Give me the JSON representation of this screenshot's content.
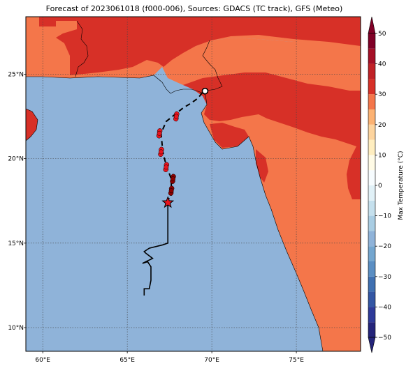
{
  "title": "Forecast of 2023061018 (f000-006), Sources: GDACS (TC track), GFS (Meteo)",
  "map": {
    "lon_range": [
      59,
      78.8
    ],
    "lat_range": [
      8.6,
      28.4
    ],
    "lon_ticks": [
      {
        "value": 60,
        "label": "60°E"
      },
      {
        "value": 65,
        "label": "65°E"
      },
      {
        "value": 70,
        "label": "70°E"
      },
      {
        "value": 75,
        "label": "75°E"
      }
    ],
    "lat_ticks": [
      {
        "value": 10,
        "label": "10°N"
      },
      {
        "value": 15,
        "label": "15°N"
      },
      {
        "value": 20,
        "label": "20°N"
      },
      {
        "value": 25,
        "label": "25°N"
      }
    ],
    "ocean_color": "#8fb3d9",
    "gridlines": "dotted",
    "layers": [
      "max-temperature-fill",
      "coastlines",
      "country-borders",
      "tc-track"
    ]
  },
  "colorbar": {
    "label": "Max Temperature (°C)",
    "min": -50,
    "max": 50,
    "ticks": [
      {
        "value": 50,
        "label": "50"
      },
      {
        "value": 40,
        "label": "40"
      },
      {
        "value": 30,
        "label": "30"
      },
      {
        "value": 20,
        "label": "20"
      },
      {
        "value": 10,
        "label": "10"
      },
      {
        "value": 0,
        "label": "0"
      },
      {
        "value": -10,
        "label": "−10"
      },
      {
        "value": -20,
        "label": "−20"
      },
      {
        "value": -30,
        "label": "−30"
      },
      {
        "value": -40,
        "label": "−40"
      },
      {
        "value": -50,
        "label": "−50"
      }
    ],
    "bands": [
      {
        "from": -50,
        "to": -45,
        "color": "#24247a"
      },
      {
        "from": -45,
        "to": -40,
        "color": "#2e3a99"
      },
      {
        "from": -40,
        "to": -35,
        "color": "#3356a4"
      },
      {
        "from": -35,
        "to": -30,
        "color": "#3f70b1"
      },
      {
        "from": -30,
        "to": -25,
        "color": "#5a8ec3"
      },
      {
        "from": -25,
        "to": -20,
        "color": "#74a6cf"
      },
      {
        "from": -20,
        "to": -15,
        "color": "#8fb3d9"
      },
      {
        "from": -15,
        "to": -10,
        "color": "#a9cde3"
      },
      {
        "from": -10,
        "to": -5,
        "color": "#c5e0ed"
      },
      {
        "from": -5,
        "to": 0,
        "color": "#e1f1f7"
      },
      {
        "from": 0,
        "to": 5,
        "color": "#f7fcfe"
      },
      {
        "from": 5,
        "to": 10,
        "color": "#fffbe6"
      },
      {
        "from": 10,
        "to": 15,
        "color": "#ffeec0"
      },
      {
        "from": 15,
        "to": 20,
        "color": "#fdd49e"
      },
      {
        "from": 20,
        "to": 25,
        "color": "#fcb273"
      },
      {
        "from": 25,
        "to": 30,
        "color": "#f4764a"
      },
      {
        "from": 30,
        "to": 35,
        "color": "#d73027"
      },
      {
        "from": 35,
        "to": 40,
        "color": "#c02126"
      },
      {
        "from": 40,
        "to": 45,
        "color": "#a50f26"
      },
      {
        "from": 45,
        "to": 50,
        "color": "#800026"
      }
    ]
  },
  "track": {
    "past_track": [
      [
        66,
        11.9
      ],
      [
        66,
        12.3
      ],
      [
        66.3,
        12.3
      ],
      [
        66.4,
        12.8
      ],
      [
        66.4,
        13.6
      ],
      [
        66.2,
        13.9
      ],
      [
        65.9,
        13.8
      ],
      [
        66.5,
        14.1
      ],
      [
        66.1,
        14.4
      ],
      [
        66,
        14.5
      ],
      [
        66.3,
        14.7
      ],
      [
        67.1,
        14.9
      ],
      [
        67.4,
        15
      ],
      [
        67.4,
        16.3
      ],
      [
        67.4,
        17.4
      ]
    ],
    "forecast_track": [
      [
        67.4,
        17.4
      ],
      [
        67.6,
        18.3
      ],
      [
        67.6,
        18.8
      ],
      [
        67.3,
        19.6
      ],
      [
        67.1,
        20.4
      ],
      [
        67.0,
        21.5
      ],
      [
        67.3,
        22.2
      ],
      [
        67.8,
        22.6
      ],
      [
        68.3,
        23.0
      ],
      [
        68.8,
        23.3
      ],
      [
        69.2,
        23.6
      ],
      [
        69.5,
        24.0
      ]
    ],
    "current_position": [
      67.4,
      17.4
    ],
    "landfall_marker": [
      69.6,
      24.0
    ],
    "forecast_symbols": [
      {
        "lon": 67.6,
        "lat": 18.1,
        "color": "#8b0000"
      },
      {
        "lon": 67.7,
        "lat": 18.8,
        "color": "#8b0000"
      },
      {
        "lon": 67.3,
        "lat": 19.5,
        "color": "#e8141e"
      },
      {
        "lon": 67.0,
        "lat": 20.4,
        "color": "#e8141e"
      },
      {
        "lon": 66.9,
        "lat": 21.5,
        "color": "#e8141e"
      },
      {
        "lon": 67.9,
        "lat": 22.5,
        "color": "#e8141e"
      }
    ]
  }
}
